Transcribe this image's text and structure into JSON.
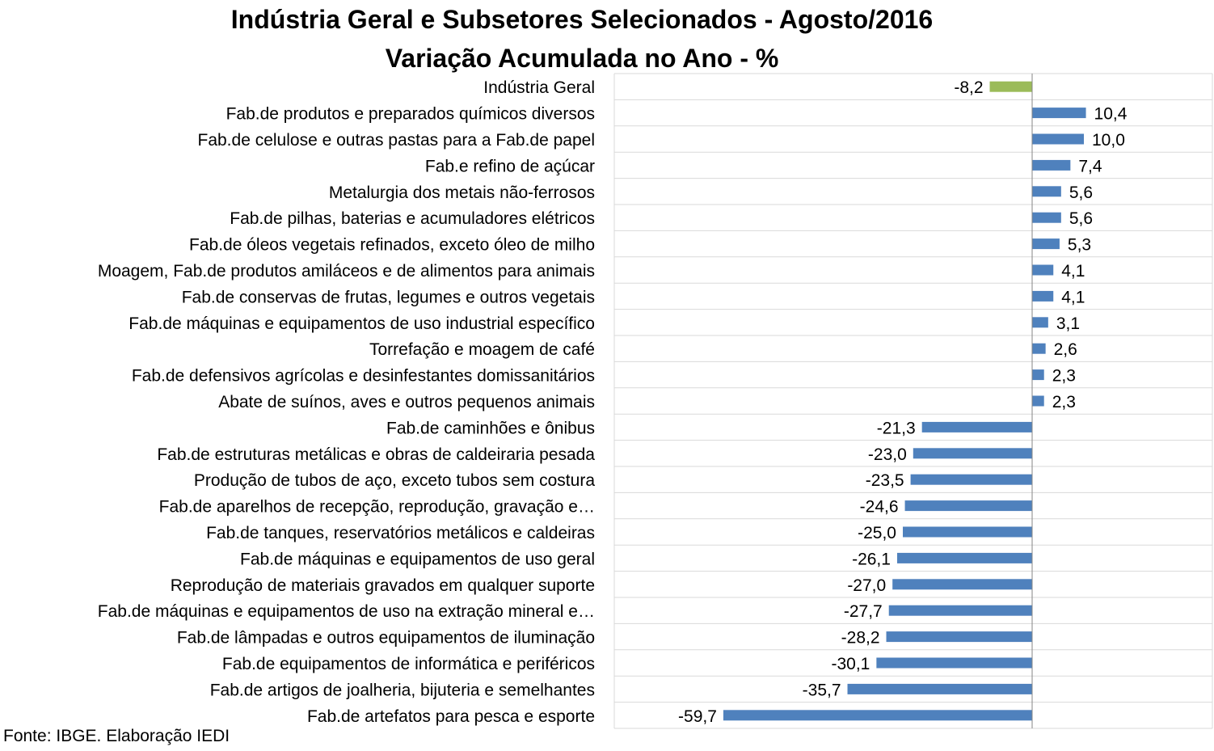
{
  "chart_data": {
    "type": "bar",
    "orientation": "horizontal",
    "title": "Indústria Geral e Subsetores Selecionados - Agosto/2016",
    "subtitle": "Variação Acumulada no Ano - %",
    "grid": true,
    "colors": {
      "highlight": "#9BBB59",
      "default": "#4F81BD",
      "grid": "#D9D9D9"
    },
    "categories": [
      "Indústria Geral",
      "Fab.de produtos e preparados químicos diversos",
      "Fab.de celulose e outras pastas para a Fab.de papel",
      "Fab.e refino de açúcar",
      "Metalurgia dos metais não-ferrosos",
      "Fab.de pilhas, baterias e acumuladores elétricos",
      "Fab.de óleos vegetais refinados, exceto óleo de milho",
      "Moagem, Fab.de produtos amiláceos e de alimentos para animais",
      "Fab.de conservas de frutas, legumes e outros vegetais",
      "Fab.de máquinas e equipamentos de uso industrial específico",
      "Torrefação e moagem de café",
      "Fab.de defensivos agrícolas e desinfestantes domissanitários",
      "Abate de suínos, aves e outros pequenos animais",
      "Fab.de caminhões e ônibus",
      "Fab.de estruturas metálicas e obras de caldeiraria pesada",
      "Produção de tubos de aço, exceto tubos sem costura",
      "Fab.de aparelhos de recepção, reprodução, gravação e…",
      "Fab.de tanques, reservatórios metálicos e caldeiras",
      "Fab.de máquinas e equipamentos de uso geral",
      "Reprodução de materiais gravados em qualquer suporte",
      "Fab.de máquinas e equipamentos de uso na extração mineral e…",
      "Fab.de lâmpadas e outros equipamentos de iluminação",
      "Fab.de equipamentos de informática e periféricos",
      "Fab.de artigos de joalheria, bijuteria e semelhantes",
      "Fab.de artefatos para pesca e esporte"
    ],
    "values": [
      -8.2,
      10.4,
      10.0,
      7.4,
      5.6,
      5.6,
      5.3,
      4.1,
      4.1,
      3.1,
      2.6,
      2.3,
      2.3,
      -21.3,
      -23.0,
      -23.5,
      -24.6,
      -25.0,
      -26.1,
      -27.0,
      -27.7,
      -28.2,
      -30.1,
      -35.7,
      -59.7
    ],
    "value_labels": [
      "-8,2",
      "10,4",
      "10,0",
      "7,4",
      "5,6",
      "5,6",
      "5,3",
      "4,1",
      "4,1",
      "3,1",
      "2,6",
      "2,3",
      "2,3",
      "-21,3",
      "-23,0",
      "-23,5",
      "-24,6",
      "-25,0",
      "-26,1",
      "-27,0",
      "-27,7",
      "-28,2",
      "-30,1",
      "-35,7",
      "-59,7"
    ],
    "highlight_index": 0
  },
  "source": "Fonte: IBGE. Elaboração IEDI"
}
